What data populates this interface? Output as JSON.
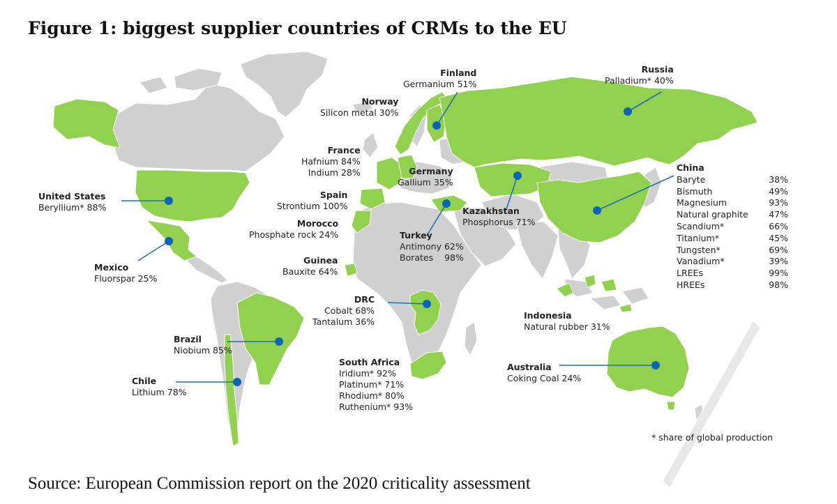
{
  "title": "Figure 1: biggest supplier countries of CRMs to the EU",
  "source": "Source: European Commission report on the 2020 criticality assessment",
  "footnote": "* share of global production",
  "colors": {
    "supplier": "#92d050",
    "other": "#d0d0d0",
    "marker": "#0a66b5",
    "line": "#1f6fb5"
  },
  "suppliers": {
    "russia": {
      "country": "Russia",
      "items": [
        "Palladium* 40%"
      ]
    },
    "finland": {
      "country": "Finland",
      "items": [
        "Germanium 51%"
      ]
    },
    "norway": {
      "country": "Norway",
      "items": [
        "Silicon metal 30%"
      ]
    },
    "france": {
      "country": "France",
      "items": [
        "Hafnium 84%",
        "Indium 28%"
      ]
    },
    "germany": {
      "country": "Germany",
      "items": [
        "Gallium 35%"
      ]
    },
    "spain": {
      "country": "Spain",
      "items": [
        "Strontium 100%"
      ]
    },
    "morocco": {
      "country": "Morocco",
      "items": [
        "Phosphate rock 24%"
      ]
    },
    "turkey": {
      "country": "Turkey",
      "items": [
        "Antimony 62%",
        "Borates    98%"
      ]
    },
    "kazakhstan": {
      "country": "Kazakhstan",
      "items": [
        "Phosphorus 71%"
      ]
    },
    "guinea": {
      "country": "Guinea",
      "items": [
        "Bauxite 64%"
      ]
    },
    "drc": {
      "country": "DRC",
      "items": [
        "Cobalt 68%",
        "Tantalum 36%"
      ]
    },
    "usa": {
      "country": "United States",
      "items": [
        "Beryllium* 88%"
      ]
    },
    "mexico": {
      "country": "Mexico",
      "items": [
        "Fluorspar 25%"
      ]
    },
    "brazil": {
      "country": "Brazil",
      "items": [
        "Niobium 85%"
      ]
    },
    "chile": {
      "country": "Chile",
      "items": [
        "Lithium 78%"
      ]
    },
    "south_africa": {
      "country": "South Africa",
      "items": [
        "Iridium* 92%",
        "Platinum* 71%",
        "Rhodium* 80%",
        "Ruthenium* 93%"
      ]
    },
    "indonesia": {
      "country": "Indonesia",
      "items": [
        "Natural rubber 31%"
      ]
    },
    "australia": {
      "country": "Australia",
      "items": [
        "Coking Coal 24%"
      ]
    }
  },
  "china": {
    "country": "China",
    "rows": [
      {
        "material": "Baryte",
        "share": "38%"
      },
      {
        "material": "Bismuth",
        "share": "49%"
      },
      {
        "material": "Magnesium",
        "share": "93%"
      },
      {
        "material": "Natural graphite",
        "share": "47%"
      },
      {
        "material": "Scandium*",
        "share": "66%"
      },
      {
        "material": "Titanium*",
        "share": "45%"
      },
      {
        "material": "Tungsten*",
        "share": "69%"
      },
      {
        "material": "Vanadium*",
        "share": "39%"
      },
      {
        "material": "LREEs",
        "share": "99%"
      },
      {
        "material": "HREEs",
        "share": "98%"
      }
    ]
  }
}
